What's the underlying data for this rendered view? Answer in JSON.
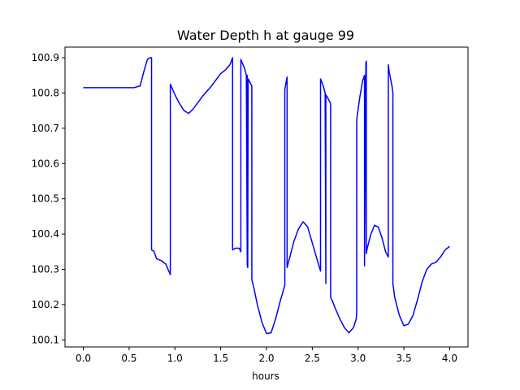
{
  "chart_data": {
    "type": "line",
    "title": "Water Depth h at gauge 99",
    "xlabel": "hours",
    "ylabel": "",
    "xlim": [
      -0.2,
      4.2
    ],
    "ylim": [
      100.08,
      100.93
    ],
    "xticks": [
      0.0,
      0.5,
      1.0,
      1.5,
      2.0,
      2.5,
      3.0,
      3.5,
      4.0
    ],
    "xtick_labels": [
      "0.0",
      "0.5",
      "1.0",
      "1.5",
      "2.0",
      "2.5",
      "3.0",
      "3.5",
      "4.0"
    ],
    "yticks": [
      100.1,
      100.2,
      100.3,
      100.4,
      100.5,
      100.6,
      100.7,
      100.8,
      100.9
    ],
    "ytick_labels": [
      "100.1",
      "100.2",
      "100.3",
      "100.4",
      "100.5",
      "100.6",
      "100.7",
      "100.8",
      "100.9"
    ],
    "grid": false,
    "series": [
      {
        "color": "#0000ff",
        "x": [
          0.0,
          0.3,
          0.55,
          0.62,
          0.66,
          0.7,
          0.73,
          0.745,
          0.745,
          0.77,
          0.8,
          0.85,
          0.9,
          0.95,
          0.95,
          1.0,
          1.05,
          1.1,
          1.15,
          1.2,
          1.3,
          1.4,
          1.5,
          1.55,
          1.6,
          1.63,
          1.63,
          1.66,
          1.7,
          1.72,
          1.72,
          1.76,
          1.78,
          1.79,
          1.79,
          1.795,
          1.8,
          1.84,
          1.84,
          1.86,
          1.9,
          1.95,
          2.0,
          2.05,
          2.1,
          2.15,
          2.2,
          2.2,
          2.22,
          2.225,
          2.225,
          2.26,
          2.3,
          2.35,
          2.4,
          2.45,
          2.5,
          2.55,
          2.59,
          2.59,
          2.62,
          2.64,
          2.648,
          2.648,
          2.66,
          2.7,
          2.7,
          2.72,
          2.75,
          2.8,
          2.85,
          2.9,
          2.95,
          2.98,
          2.985,
          2.985,
          3.02,
          3.05,
          3.07,
          3.07,
          3.085,
          3.09,
          3.09,
          3.1,
          3.14,
          3.18,
          3.22,
          3.26,
          3.3,
          3.33,
          3.33,
          3.34,
          3.37,
          3.38,
          3.38,
          3.4,
          3.45,
          3.5,
          3.55,
          3.6,
          3.65,
          3.7,
          3.75,
          3.8,
          3.85,
          3.9,
          3.95,
          4.0
        ],
        "y": [
          100.815,
          100.815,
          100.815,
          100.82,
          100.86,
          100.895,
          100.9,
          100.9,
          100.355,
          100.352,
          100.33,
          100.325,
          100.315,
          100.285,
          100.825,
          100.795,
          100.77,
          100.75,
          100.742,
          100.755,
          100.79,
          100.82,
          100.855,
          100.865,
          100.88,
          100.9,
          100.355,
          100.36,
          100.36,
          100.35,
          100.895,
          100.87,
          100.85,
          100.31,
          100.85,
          100.305,
          100.84,
          100.82,
          100.27,
          100.25,
          100.2,
          100.15,
          100.118,
          100.12,
          100.16,
          100.21,
          100.255,
          100.81,
          100.84,
          100.845,
          100.305,
          100.34,
          100.38,
          100.415,
          100.435,
          100.42,
          100.375,
          100.33,
          100.295,
          100.84,
          100.82,
          100.8,
          100.26,
          100.795,
          100.79,
          100.77,
          100.22,
          100.21,
          100.19,
          100.16,
          100.135,
          100.12,
          100.135,
          100.16,
          100.18,
          100.725,
          100.79,
          100.835,
          100.85,
          100.31,
          100.885,
          100.89,
          100.345,
          100.36,
          100.4,
          100.425,
          100.42,
          100.39,
          100.35,
          100.335,
          100.88,
          100.86,
          100.82,
          100.8,
          100.26,
          100.22,
          100.17,
          100.14,
          100.145,
          100.17,
          100.215,
          100.265,
          100.3,
          100.315,
          100.32,
          100.335,
          100.355,
          100.365
        ]
      }
    ]
  }
}
